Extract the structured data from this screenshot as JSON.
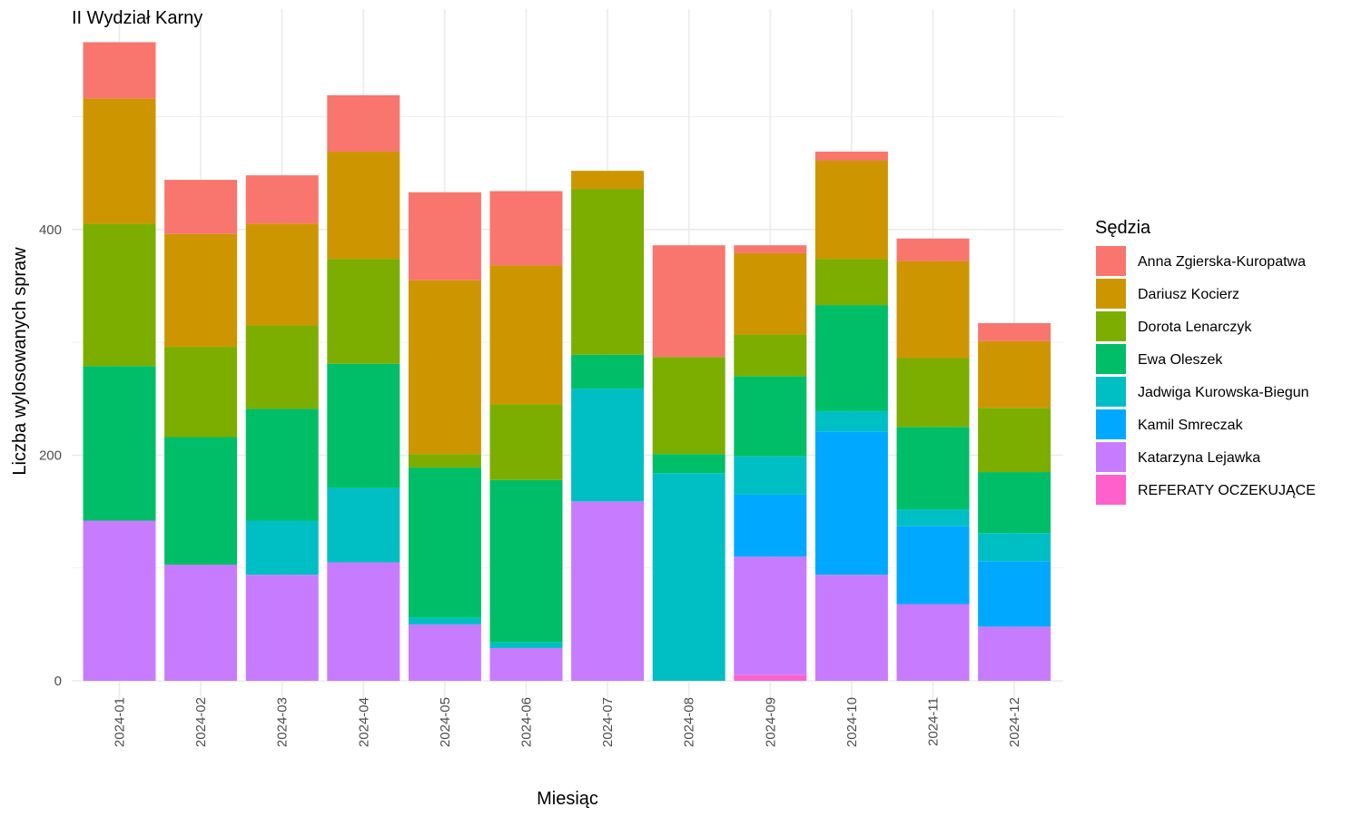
{
  "chart_data": {
    "type": "bar",
    "stacked": true,
    "title": "II Wydział Karny",
    "xlabel": "Miesiąc",
    "ylabel": "Liczba wylosowanych spraw",
    "ylim": [
      0,
      570
    ],
    "yticks": [
      0,
      200,
      400
    ],
    "grid": true,
    "legend_title": "Sędzia",
    "legend_position": "right",
    "categories": [
      "2024-01",
      "2024-02",
      "2024-03",
      "2024-04",
      "2024-05",
      "2024-06",
      "2024-07",
      "2024-08",
      "2024-09",
      "2024-10",
      "2024-11",
      "2024-12"
    ],
    "series": [
      {
        "name": "Anna Zgierska-Kuropatwa",
        "color": "#F8766D",
        "values": [
          50,
          48,
          43,
          50,
          78,
          66,
          0,
          99,
          7,
          8,
          20,
          16
        ]
      },
      {
        "name": "Dariusz Kocierz",
        "color": "#CD9600",
        "values": [
          111,
          100,
          90,
          95,
          154,
          123,
          16,
          0,
          72,
          87,
          86,
          59
        ]
      },
      {
        "name": "Dorota Lenarczyk",
        "color": "#7CAE00",
        "values": [
          126,
          80,
          74,
          93,
          12,
          67,
          147,
          86,
          37,
          41,
          61,
          57
        ]
      },
      {
        "name": "Ewa Oleszek",
        "color": "#00BE67",
        "values": [
          137,
          113,
          99,
          110,
          133,
          144,
          30,
          17,
          71,
          94,
          73,
          54
        ]
      },
      {
        "name": "Jadwiga Kurowska-Biegun",
        "color": "#00BFC4",
        "values": [
          0,
          0,
          48,
          66,
          6,
          5,
          100,
          184,
          34,
          18,
          15,
          25
        ]
      },
      {
        "name": "Kamil Smreczak",
        "color": "#00A9FF",
        "values": [
          0,
          0,
          0,
          0,
          0,
          0,
          0,
          0,
          55,
          127,
          69,
          58
        ]
      },
      {
        "name": "Katarzyna Lejawka",
        "color": "#C77CFF",
        "values": [
          142,
          103,
          94,
          105,
          50,
          29,
          159,
          0,
          105,
          94,
          68,
          48
        ]
      },
      {
        "name": "REFERATY OCZEKUJĄCE",
        "color": "#FF61CC",
        "values": [
          0,
          0,
          0,
          0,
          0,
          0,
          0,
          0,
          5,
          0,
          0,
          0
        ]
      }
    ]
  }
}
